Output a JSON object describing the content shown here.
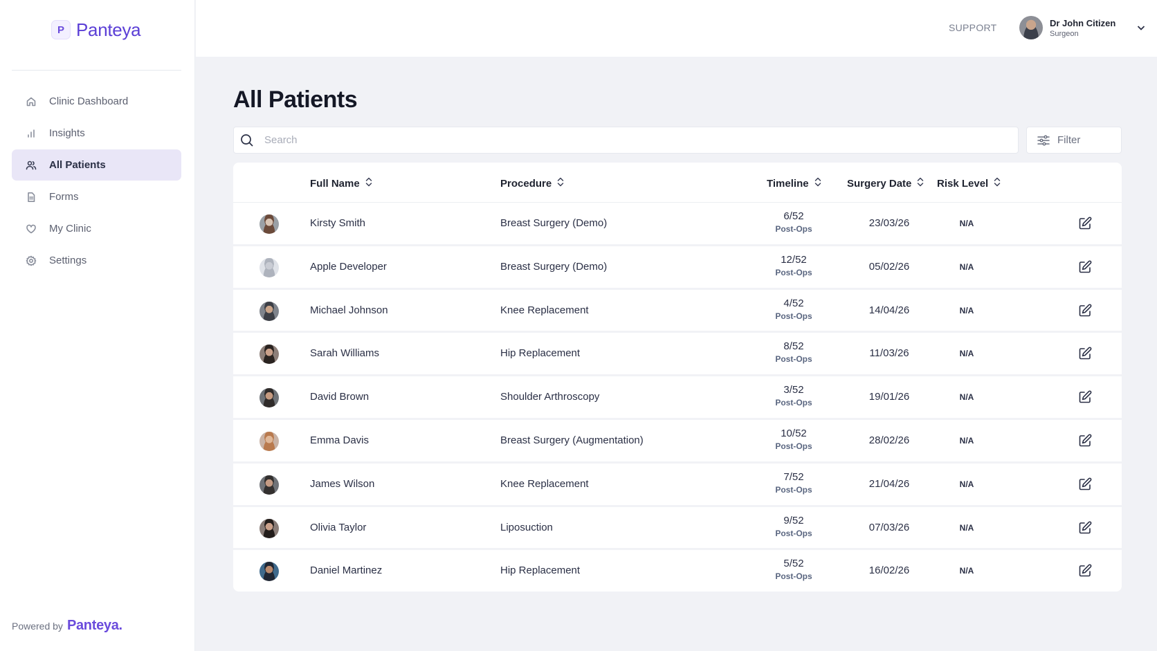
{
  "brand": {
    "name": "Panteya",
    "mark": "P"
  },
  "sidebar": {
    "items": [
      {
        "label": "Clinic Dashboard",
        "icon": "home-icon",
        "active": false
      },
      {
        "label": "Insights",
        "icon": "bar-chart-icon",
        "active": false
      },
      {
        "label": "All Patients",
        "icon": "users-icon",
        "active": true
      },
      {
        "label": "Forms",
        "icon": "document-icon",
        "active": false
      },
      {
        "label": "My Clinic",
        "icon": "heart-icon",
        "active": false
      },
      {
        "label": "Settings",
        "icon": "gear-icon",
        "active": false
      }
    ],
    "powered_label": "Powered by",
    "powered_brand": "Panteya."
  },
  "header": {
    "support_label": "SUPPORT",
    "user": {
      "name": "Dr John Citizen",
      "role": "Surgeon"
    }
  },
  "main": {
    "title": "All Patients",
    "search": {
      "placeholder": "Search",
      "value": ""
    },
    "filter_label": "Filter",
    "columns": {
      "name": "Full Name",
      "procedure": "Procedure",
      "timeline": "Timeline",
      "surgery_date": "Surgery Date",
      "risk": "Risk Level"
    },
    "rows": [
      {
        "name": "Kirsty Smith",
        "procedure": "Breast Surgery (Demo)",
        "timeline": "6/52",
        "timeline_sub": "Post-Ops",
        "date": "23/03/26",
        "risk": "N/A"
      },
      {
        "name": "Apple Developer",
        "procedure": "Breast Surgery (Demo)",
        "timeline": "12/52",
        "timeline_sub": "Post-Ops",
        "date": "05/02/26",
        "risk": "N/A"
      },
      {
        "name": "Michael Johnson",
        "procedure": "Knee Replacement",
        "timeline": "4/52",
        "timeline_sub": "Post-Ops",
        "date": "14/04/26",
        "risk": "N/A"
      },
      {
        "name": "Sarah Williams",
        "procedure": "Hip Replacement",
        "timeline": "8/52",
        "timeline_sub": "Post-Ops",
        "date": "11/03/26",
        "risk": "N/A"
      },
      {
        "name": "David Brown",
        "procedure": "Shoulder Arthroscopy",
        "timeline": "3/52",
        "timeline_sub": "Post-Ops",
        "date": "19/01/26",
        "risk": "N/A"
      },
      {
        "name": "Emma Davis",
        "procedure": "Breast Surgery (Augmentation)",
        "timeline": "10/52",
        "timeline_sub": "Post-Ops",
        "date": "28/02/26",
        "risk": "N/A"
      },
      {
        "name": "James Wilson",
        "procedure": "Knee Replacement",
        "timeline": "7/52",
        "timeline_sub": "Post-Ops",
        "date": "21/04/26",
        "risk": "N/A"
      },
      {
        "name": "Olivia Taylor",
        "procedure": "Liposuction",
        "timeline": "9/52",
        "timeline_sub": "Post-Ops",
        "date": "07/03/26",
        "risk": "N/A"
      },
      {
        "name": "Daniel Martinez",
        "procedure": "Hip Replacement",
        "timeline": "5/52",
        "timeline_sub": "Post-Ops",
        "date": "16/02/26",
        "risk": "N/A"
      }
    ]
  },
  "colors": {
    "accent": "#5b3fd6",
    "active_nav_bg": "#e9e6f7",
    "page_bg": "#f1f2f6"
  }
}
